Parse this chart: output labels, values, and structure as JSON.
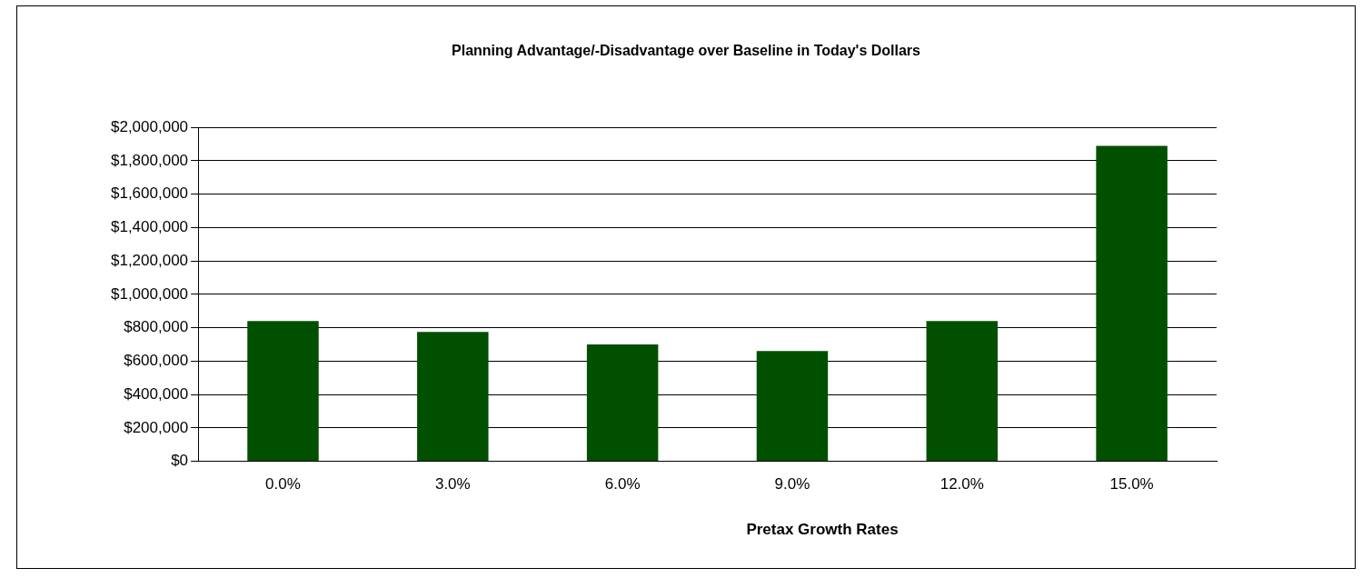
{
  "chart_data": {
    "type": "bar",
    "title": "Planning Advantage/-Disadvantage over Baseline in Today's Dollars",
    "xlabel": "Pretax Growth Rates",
    "categories": [
      "0.0%",
      "3.0%",
      "6.0%",
      "9.0%",
      "12.0%",
      "15.0%"
    ],
    "values": [
      840000,
      775000,
      700000,
      660000,
      840000,
      1890000
    ],
    "color": "#005000",
    "ylim": [
      0,
      2000000
    ],
    "yticks": [
      {
        "value": 0,
        "label": "$0"
      },
      {
        "value": 200000,
        "label": "$200,000"
      },
      {
        "value": 400000,
        "label": "$400,000"
      },
      {
        "value": 600000,
        "label": "$600,000"
      },
      {
        "value": 800000,
        "label": "$800,000"
      },
      {
        "value": 1000000,
        "label": "$1,000,000"
      },
      {
        "value": 1200000,
        "label": "$1,200,000"
      },
      {
        "value": 1400000,
        "label": "$1,400,000"
      },
      {
        "value": 1600000,
        "label": "$1,600,000"
      },
      {
        "value": 1800000,
        "label": "$1,800,000"
      },
      {
        "value": 2000000,
        "label": "$2,000,000"
      }
    ],
    "grid": "y"
  }
}
